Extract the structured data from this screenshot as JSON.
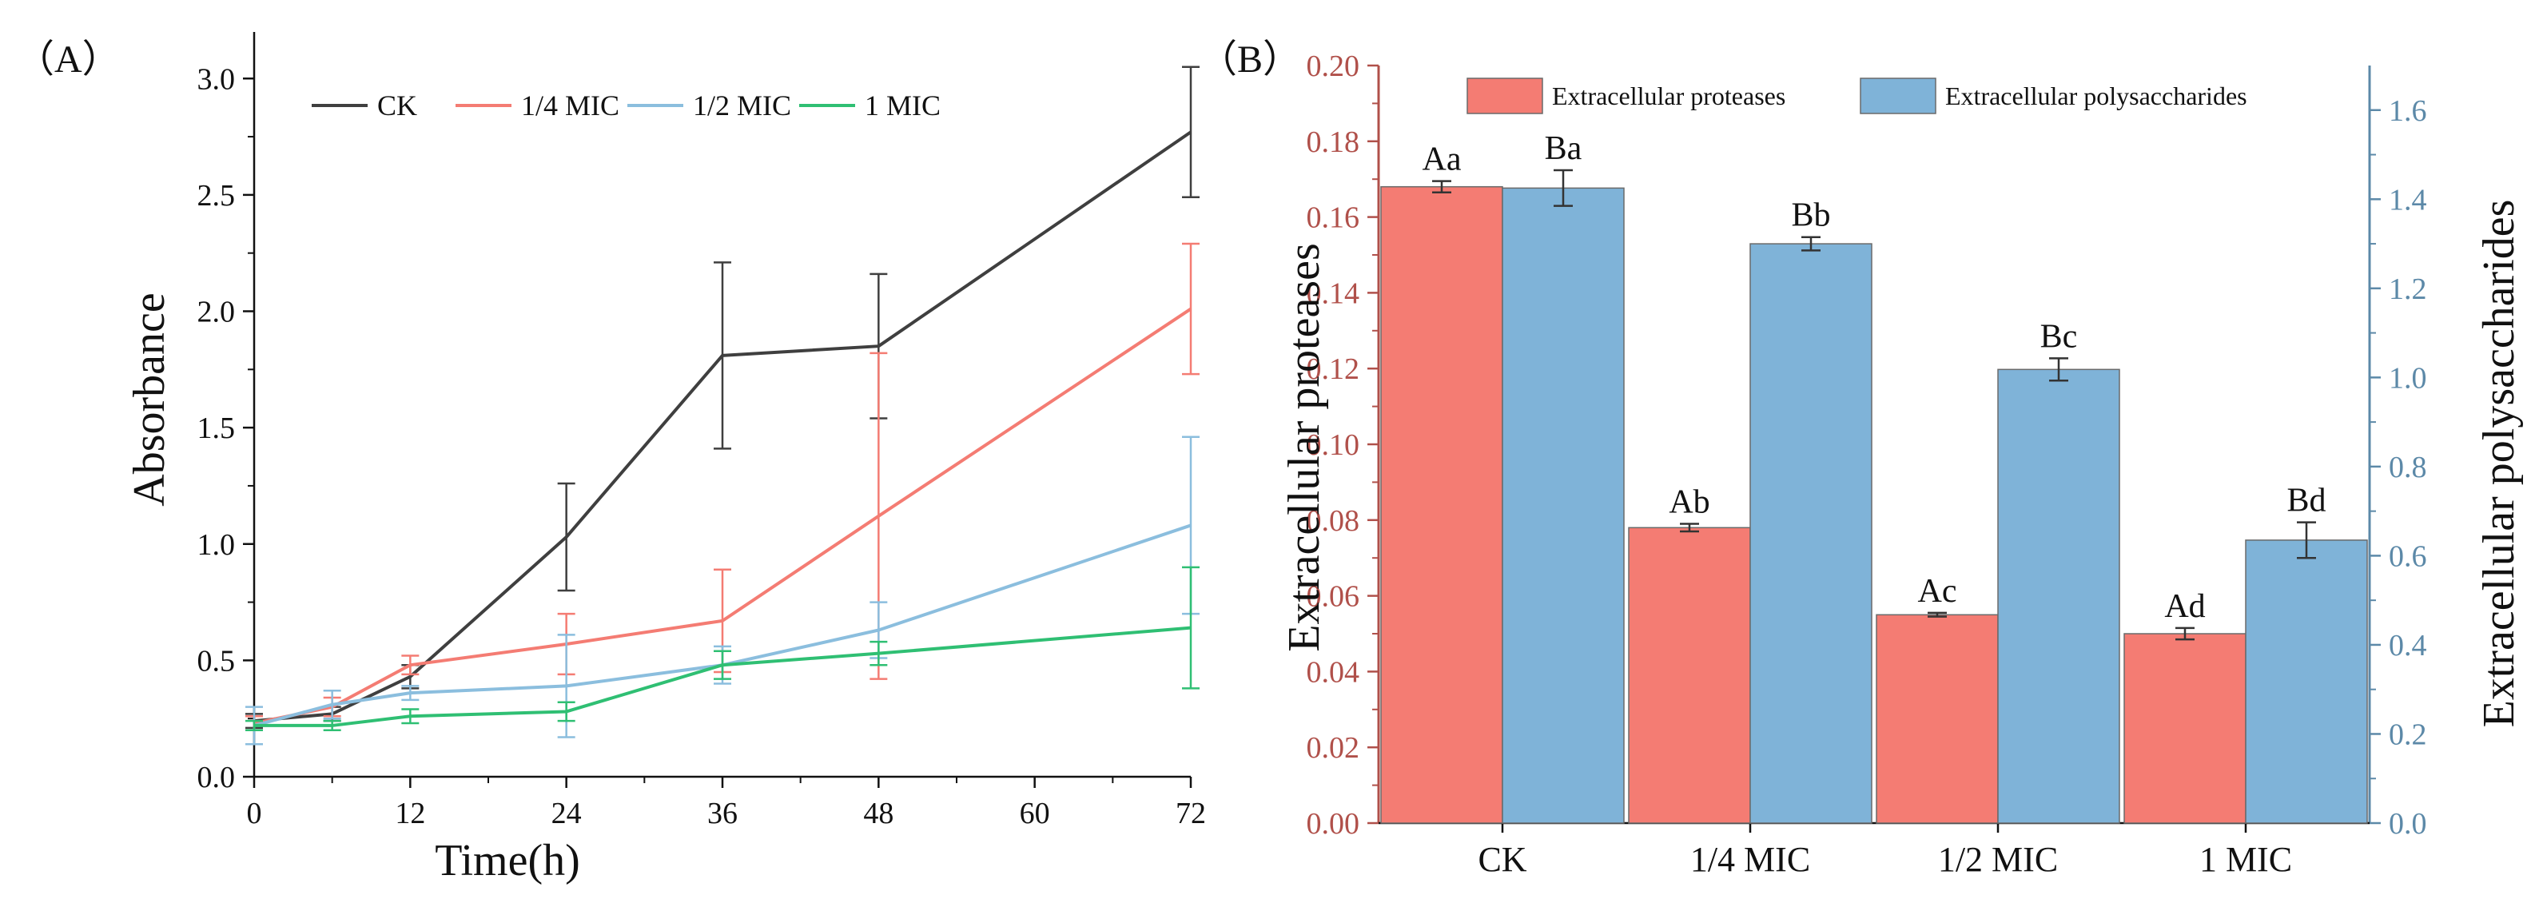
{
  "chart_data": [
    {
      "type": "line",
      "panel_label": "（A）",
      "title": "",
      "xlabel": "Time(h)",
      "ylabel": "Absorbance",
      "xlim": [
        0,
        72
      ],
      "ylim": [
        0,
        3.2
      ],
      "xticks": [
        0,
        12,
        24,
        36,
        48,
        60,
        72
      ],
      "xtick_labels": [
        "0",
        "12",
        "24",
        "36",
        "48",
        "60",
        "72"
      ],
      "yticks": [
        0,
        0.5,
        1.0,
        1.5,
        2.0,
        2.5,
        3.0
      ],
      "ytick_labels": [
        "0.0",
        "0.5",
        "1.0",
        "1.5",
        "2.0",
        "2.5",
        "3.0"
      ],
      "grid": false,
      "legend_position": "top",
      "series": [
        {
          "name": "CK",
          "color": "#3f3f3f",
          "x": [
            0,
            6,
            12,
            24,
            36,
            48,
            72
          ],
          "y": [
            0.24,
            0.27,
            0.43,
            1.03,
            1.81,
            1.85,
            2.77
          ],
          "err": [
            0.03,
            0.03,
            0.05,
            0.23,
            0.4,
            0.31,
            0.28
          ]
        },
        {
          "name": "1/4 MIC",
          "color": "#f47c73",
          "x": [
            0,
            6,
            12,
            24,
            36,
            48,
            72
          ],
          "y": [
            0.23,
            0.3,
            0.48,
            0.57,
            0.67,
            1.12,
            2.01
          ],
          "err": [
            0.03,
            0.04,
            0.04,
            0.13,
            0.22,
            0.7,
            0.28
          ]
        },
        {
          "name": "1/2 MIC",
          "color": "#8bbede",
          "x": [
            0,
            6,
            12,
            24,
            36,
            48,
            72
          ],
          "y": [
            0.22,
            0.31,
            0.36,
            0.39,
            0.48,
            0.63,
            1.08
          ],
          "err": [
            0.08,
            0.06,
            0.03,
            0.22,
            0.08,
            0.12,
            0.38
          ]
        },
        {
          "name": "1 MIC",
          "color": "#2fbf73",
          "x": [
            0,
            6,
            12,
            24,
            36,
            48,
            72
          ],
          "y": [
            0.22,
            0.22,
            0.26,
            0.28,
            0.48,
            0.53,
            0.64
          ],
          "err": [
            0.02,
            0.02,
            0.03,
            0.04,
            0.06,
            0.05,
            0.26
          ]
        }
      ]
    },
    {
      "type": "bar",
      "panel_label": "（B）",
      "title": "",
      "xlabel": "",
      "categories": [
        "CK",
        "1/4 MIC",
        "1/2 MIC",
        "1 MIC"
      ],
      "legend_position": "top",
      "grid": false,
      "left_axis": {
        "label": "Extracellular proteases",
        "color": "#b0504a",
        "lim": [
          0,
          0.2
        ],
        "ticks": [
          0,
          0.02,
          0.04,
          0.06,
          0.08,
          0.1,
          0.12,
          0.14,
          0.16,
          0.18,
          0.2
        ],
        "tick_labels": [
          "0.00",
          "0.02",
          "0.04",
          "0.06",
          "0.08",
          "0.10",
          "0.12",
          "0.14",
          "0.16",
          "0.18",
          "0.20"
        ]
      },
      "right_axis": {
        "label": "Extracellular polysaccharides",
        "color": "#5c89a8",
        "lim": [
          0,
          1.7
        ],
        "ticks": [
          0,
          0.2,
          0.4,
          0.6,
          0.8,
          1.0,
          1.2,
          1.4,
          1.6
        ],
        "tick_labels": [
          "0.0",
          "0.2",
          "0.4",
          "0.6",
          "0.8",
          "1.0",
          "1.2",
          "1.4",
          "1.6"
        ]
      },
      "series": [
        {
          "name": "Extracellular proteases",
          "axis": "left",
          "color": "#f47c73",
          "values": [
            0.168,
            0.078,
            0.055,
            0.05
          ],
          "err": [
            0.0015,
            0.001,
            0.0005,
            0.0015
          ],
          "labels": [
            "Aa",
            "Ab",
            "Ac",
            "Ad"
          ]
        },
        {
          "name": "Extracellular polysaccharides",
          "axis": "right",
          "color": "#7fb3d8",
          "values": [
            1.425,
            1.3,
            1.018,
            0.635
          ],
          "err": [
            0.04,
            0.015,
            0.025,
            0.04
          ],
          "labels": [
            "Ba",
            "Bb",
            "Bc",
            "Bd"
          ]
        }
      ]
    }
  ]
}
